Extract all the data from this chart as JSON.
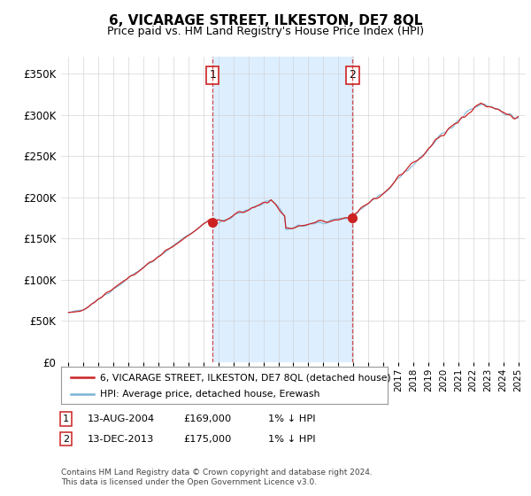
{
  "title": "6, VICARAGE STREET, ILKESTON, DE7 8QL",
  "subtitle": "Price paid vs. HM Land Registry's House Price Index (HPI)",
  "yticks": [
    0,
    50000,
    100000,
    150000,
    200000,
    250000,
    300000,
    350000
  ],
  "ytick_labels": [
    "£0",
    "£50K",
    "£100K",
    "£150K",
    "£200K",
    "£250K",
    "£300K",
    "£350K"
  ],
  "hpi_color": "#7ab3d4",
  "price_color": "#cc2222",
  "shade_color": "#ddeeff",
  "sale1_x": 2004.617,
  "sale1_price": 169000,
  "sale2_x": 2013.956,
  "sale2_price": 175000,
  "legend_line1": "6, VICARAGE STREET, ILKESTON, DE7 8QL (detached house)",
  "legend_line2": "HPI: Average price, detached house, Erewash",
  "footnote": "Contains HM Land Registry data © Crown copyright and database right 2024.\nThis data is licensed under the Open Government Licence v3.0.",
  "bg_color": "#ffffff",
  "grid_color": "#cccccc",
  "title_fontsize": 11,
  "subtitle_fontsize": 9
}
